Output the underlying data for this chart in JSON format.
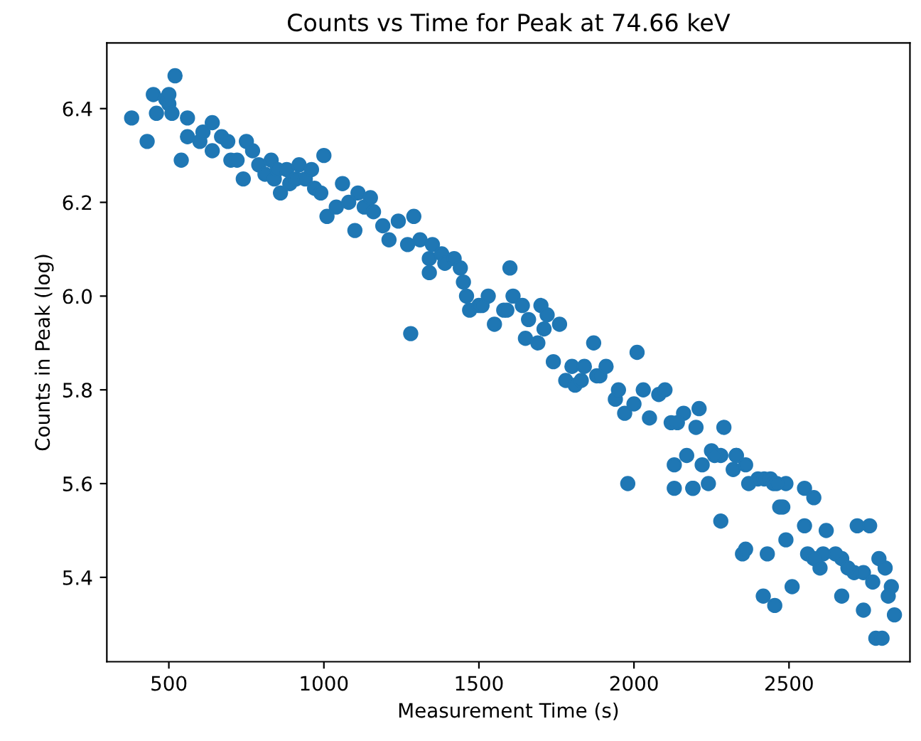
{
  "chart_data": {
    "type": "scatter",
    "title": "Counts vs Time for Peak at 74.66 keV",
    "xlabel": "Measurement Time (s)",
    "ylabel": "Counts in Peak (log)",
    "xlim": [
      300,
      2890
    ],
    "ylim": [
      5.22,
      6.54
    ],
    "xticks": [
      500,
      1000,
      1500,
      2000,
      2500
    ],
    "yticks": [
      5.4,
      5.6,
      5.8,
      {
        "value": 6.0,
        "label": "6.0"
      },
      6.2,
      6.4
    ],
    "marker": "circle",
    "grid": false,
    "legend": false,
    "series": [
      {
        "color": "#1f77b4",
        "x": [
          380,
          430,
          450,
          460,
          490,
          500,
          500,
          510,
          520,
          540,
          560,
          560,
          600,
          610,
          640,
          640,
          670,
          690,
          700,
          720,
          740,
          770,
          750,
          790,
          810,
          830,
          840,
          850,
          860,
          880,
          890,
          910,
          920,
          940,
          960,
          970,
          990,
          1000,
          1010,
          1040,
          1060,
          1080,
          1100,
          1110,
          1130,
          1150,
          1160,
          1190,
          1210,
          1240,
          1270,
          1280,
          1290,
          1310,
          1340,
          1340,
          1350,
          1380,
          1390,
          1420,
          1440,
          1450,
          1460,
          1470,
          1500,
          1510,
          1530,
          1550,
          1580,
          1590,
          1600,
          1610,
          1640,
          1650,
          1660,
          1690,
          1700,
          1710,
          1720,
          1740,
          1760,
          1780,
          1800,
          1810,
          1830,
          1840,
          1870,
          1880,
          1890,
          1910,
          1940,
          1950,
          1970,
          1980,
          2000,
          2010,
          2030,
          2050,
          2080,
          2100,
          2120,
          2130,
          2160,
          2170,
          2190,
          2200,
          2220,
          2250,
          2280,
          2290,
          2320,
          2330,
          2360,
          2370,
          2400,
          2420,
          2440,
          2450,
          2480,
          2130,
          2190,
          2240,
          2470,
          2550,
          2580,
          2490,
          2460,
          2210,
          2140,
          2260,
          2330,
          2280,
          2350,
          2360,
          2430,
          2417,
          2454,
          2510,
          2490,
          2550,
          2620,
          2720,
          2760,
          2790,
          2810,
          2830,
          2820,
          2840,
          2780,
          2800,
          2740,
          2670,
          2600,
          2670,
          2560,
          2610,
          2710,
          2740,
          2580,
          2690,
          2650,
          2770
        ],
        "values": [
          6.38,
          6.33,
          6.43,
          6.39,
          6.42,
          6.41,
          6.43,
          6.39,
          6.47,
          6.29,
          6.38,
          6.34,
          6.33,
          6.35,
          6.37,
          6.31,
          6.34,
          6.33,
          6.29,
          6.29,
          6.25,
          6.31,
          6.33,
          6.28,
          6.26,
          6.29,
          6.25,
          6.27,
          6.22,
          6.27,
          6.24,
          6.25,
          6.28,
          6.25,
          6.27,
          6.23,
          6.22,
          6.3,
          6.17,
          6.19,
          6.24,
          6.2,
          6.14,
          6.22,
          6.19,
          6.21,
          6.18,
          6.15,
          6.12,
          6.16,
          6.11,
          5.92,
          6.17,
          6.12,
          6.08,
          6.05,
          6.11,
          6.09,
          6.07,
          6.08,
          6.06,
          6.03,
          6.0,
          5.97,
          5.98,
          5.98,
          6.0,
          5.94,
          5.97,
          5.97,
          6.06,
          6.0,
          5.98,
          5.91,
          5.95,
          5.9,
          5.98,
          5.93,
          5.96,
          5.86,
          5.94,
          5.82,
          5.85,
          5.81,
          5.82,
          5.85,
          5.9,
          5.83,
          5.83,
          5.85,
          5.78,
          5.8,
          5.75,
          5.6,
          5.77,
          5.88,
          5.8,
          5.74,
          5.79,
          5.8,
          5.73,
          5.64,
          5.75,
          5.66,
          5.59,
          5.72,
          5.64,
          5.67,
          5.66,
          5.72,
          5.63,
          5.66,
          5.64,
          5.6,
          5.61,
          5.61,
          5.61,
          5.6,
          5.55,
          5.59,
          5.59,
          5.6,
          5.55,
          5.59,
          5.57,
          5.6,
          5.6,
          5.76,
          5.73,
          5.66,
          5.66,
          5.52,
          5.45,
          5.46,
          5.45,
          5.36,
          5.34,
          5.38,
          5.48,
          5.51,
          5.5,
          5.51,
          5.51,
          5.44,
          5.42,
          5.38,
          5.36,
          5.32,
          5.27,
          5.27,
          5.33,
          5.36,
          5.42,
          5.44,
          5.45,
          5.45,
          5.41,
          5.41,
          5.44,
          5.42,
          5.45,
          5.39
        ]
      }
    ]
  }
}
